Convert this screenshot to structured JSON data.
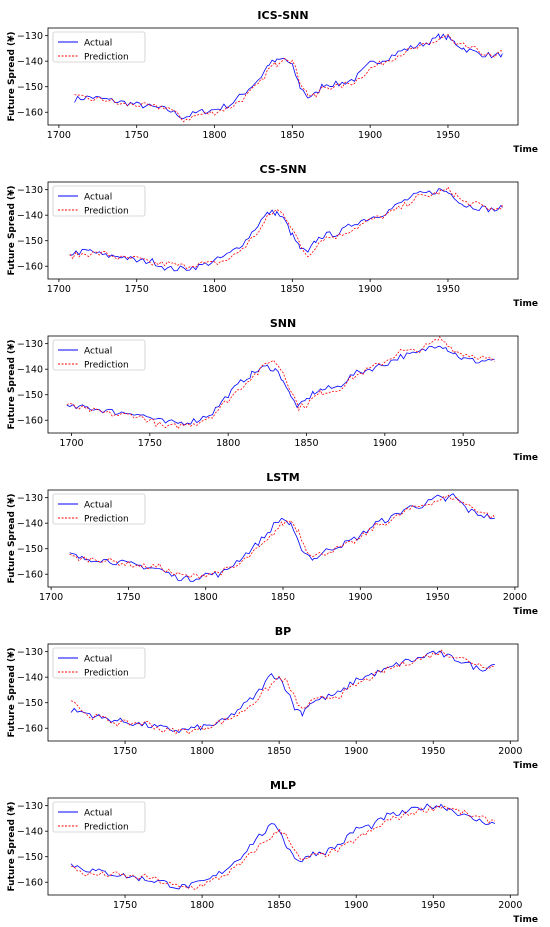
{
  "figure": {
    "ylabel": "Future Spread (¥)",
    "xlabel": "Time"
  },
  "legend": {
    "actual_color": "#0000ff",
    "prediction_color": "#ff0000"
  },
  "chart_data": [
    {
      "type": "line",
      "title": "ICS-SNN",
      "xlabel": "Time",
      "ylabel": "Future Spread (¥)",
      "xlim": [
        1693,
        1995
      ],
      "ylim": [
        -165,
        -127
      ],
      "xticks": [
        1700,
        1750,
        1800,
        1850,
        1900,
        1950
      ],
      "yticks": [
        -130,
        -140,
        -150,
        -160
      ],
      "legend": "top-left",
      "grid": false,
      "series": [
        {
          "name": "Actual",
          "x": [
            1710,
            1720,
            1730,
            1740,
            1750,
            1760,
            1770,
            1780,
            1790,
            1800,
            1810,
            1820,
            1830,
            1835,
            1840,
            1845,
            1850,
            1855,
            1860,
            1865,
            1870,
            1880,
            1890,
            1900,
            1910,
            1920,
            1930,
            1940,
            1945,
            1950,
            1955,
            1960,
            1970,
            1980,
            1985
          ],
          "y": [
            -155,
            -154,
            -155,
            -156,
            -157,
            -158,
            -159,
            -162,
            -160,
            -159,
            -157,
            -152,
            -146,
            -141,
            -140,
            -139,
            -142,
            -150,
            -154,
            -153,
            -149,
            -149,
            -147,
            -141,
            -139,
            -136,
            -134,
            -132,
            -130,
            -131,
            -133,
            -135,
            -137,
            -138,
            -137
          ]
        },
        {
          "name": "Prediction",
          "x": [
            1710,
            1720,
            1730,
            1740,
            1750,
            1760,
            1770,
            1780,
            1790,
            1800,
            1810,
            1820,
            1830,
            1835,
            1840,
            1845,
            1850,
            1855,
            1860,
            1865,
            1870,
            1880,
            1890,
            1900,
            1910,
            1920,
            1930,
            1940,
            1945,
            1950,
            1955,
            1960,
            1970,
            1980,
            1985
          ],
          "y": [
            -154,
            -155,
            -155,
            -157,
            -157,
            -158,
            -158,
            -163,
            -161,
            -160,
            -158,
            -154,
            -148,
            -143,
            -141,
            -138,
            -140,
            -148,
            -153,
            -154,
            -150,
            -150,
            -148,
            -143,
            -140,
            -137,
            -135,
            -133,
            -131,
            -130,
            -134,
            -134,
            -136,
            -139,
            -136
          ]
        }
      ]
    },
    {
      "type": "line",
      "title": "CS-SNN",
      "xlabel": "Time",
      "ylabel": "Future Spread (¥)",
      "xlim": [
        1693,
        1995
      ],
      "ylim": [
        -165,
        -127
      ],
      "xticks": [
        1700,
        1750,
        1800,
        1850,
        1900,
        1950
      ],
      "yticks": [
        -130,
        -140,
        -150,
        -160
      ],
      "legend": "top-left",
      "grid": false,
      "series": [
        {
          "name": "Actual",
          "x": [
            1707,
            1720,
            1730,
            1740,
            1750,
            1760,
            1770,
            1780,
            1790,
            1800,
            1810,
            1820,
            1830,
            1835,
            1840,
            1845,
            1850,
            1855,
            1860,
            1865,
            1870,
            1880,
            1890,
            1900,
            1910,
            1920,
            1930,
            1940,
            1945,
            1950,
            1955,
            1960,
            1970,
            1980,
            1985
          ],
          "y": [
            -155,
            -154,
            -156,
            -156,
            -158,
            -158,
            -161,
            -161,
            -160,
            -158,
            -155,
            -150,
            -142,
            -139,
            -139,
            -142,
            -148,
            -153,
            -155,
            -150,
            -148,
            -147,
            -143,
            -141,
            -139,
            -135,
            -132,
            -131,
            -130,
            -131,
            -133,
            -136,
            -137,
            -138,
            -137
          ]
        },
        {
          "name": "Prediction",
          "x": [
            1707,
            1720,
            1730,
            1740,
            1750,
            1760,
            1770,
            1780,
            1790,
            1800,
            1810,
            1820,
            1830,
            1835,
            1840,
            1845,
            1850,
            1855,
            1860,
            1865,
            1870,
            1880,
            1890,
            1900,
            1910,
            1920,
            1930,
            1940,
            1945,
            1950,
            1955,
            1960,
            1970,
            1980,
            1985
          ],
          "y": [
            -156,
            -155,
            -155,
            -157,
            -157,
            -159,
            -159,
            -160,
            -159,
            -159,
            -157,
            -152,
            -145,
            -140,
            -138,
            -140,
            -145,
            -152,
            -156,
            -152,
            -149,
            -148,
            -145,
            -142,
            -140,
            -137,
            -133,
            -132,
            -131,
            -130,
            -132,
            -135,
            -136,
            -138,
            -136
          ]
        }
      ]
    },
    {
      "type": "line",
      "title": "SNN",
      "xlabel": "Time",
      "ylabel": "Future Spread (¥)",
      "xlim": [
        1685,
        1985
      ],
      "ylim": [
        -165,
        -127
      ],
      "xticks": [
        1700,
        1750,
        1800,
        1850,
        1900,
        1950
      ],
      "yticks": [
        -130,
        -140,
        -150,
        -160
      ],
      "legend": "top-left",
      "grid": false,
      "series": [
        {
          "name": "Actual",
          "x": [
            1697,
            1710,
            1720,
            1730,
            1740,
            1750,
            1760,
            1770,
            1780,
            1790,
            1800,
            1810,
            1815,
            1820,
            1825,
            1830,
            1835,
            1840,
            1845,
            1850,
            1855,
            1860,
            1870,
            1880,
            1890,
            1900,
            1910,
            1920,
            1930,
            1935,
            1940,
            1945,
            1950,
            1960,
            1970
          ],
          "y": [
            -155,
            -155,
            -156,
            -157,
            -157,
            -159,
            -161,
            -161,
            -160,
            -157,
            -150,
            -144,
            -142,
            -140,
            -139,
            -140,
            -144,
            -151,
            -155,
            -152,
            -149,
            -148,
            -147,
            -142,
            -140,
            -138,
            -135,
            -134,
            -131,
            -130,
            -132,
            -134,
            -136,
            -137,
            -136
          ]
        },
        {
          "name": "Prediction",
          "x": [
            1697,
            1710,
            1720,
            1730,
            1740,
            1750,
            1760,
            1770,
            1780,
            1790,
            1800,
            1810,
            1815,
            1820,
            1825,
            1830,
            1835,
            1840,
            1845,
            1850,
            1855,
            1860,
            1870,
            1880,
            1890,
            1900,
            1910,
            1920,
            1930,
            1935,
            1940,
            1945,
            1950,
            1960,
            1970
          ],
          "y": [
            -154,
            -156,
            -157,
            -158,
            -158,
            -160,
            -163,
            -162,
            -161,
            -158,
            -152,
            -146,
            -143,
            -141,
            -137,
            -137,
            -141,
            -148,
            -155,
            -154,
            -151,
            -149,
            -148,
            -143,
            -140,
            -137,
            -133,
            -133,
            -130,
            -128,
            -130,
            -133,
            -134,
            -135,
            -137
          ]
        }
      ]
    },
    {
      "type": "line",
      "title": "LSTM",
      "xlabel": "Time",
      "ylabel": "Future Spread (¥)",
      "xlim": [
        1698,
        2002
      ],
      "ylim": [
        -165,
        -127
      ],
      "xticks": [
        1700,
        1750,
        1800,
        1850,
        1900,
        1950,
        2000
      ],
      "yticks": [
        -130,
        -140,
        -150,
        -160
      ],
      "legend": "top-left",
      "grid": false,
      "series": [
        {
          "name": "Actual",
          "x": [
            1712,
            1720,
            1730,
            1740,
            1750,
            1760,
            1770,
            1780,
            1790,
            1800,
            1810,
            1820,
            1830,
            1840,
            1845,
            1850,
            1855,
            1860,
            1865,
            1870,
            1880,
            1890,
            1900,
            1910,
            1920,
            1930,
            1940,
            1950,
            1955,
            1960,
            1970,
            1980,
            1987
          ],
          "y": [
            -152,
            -154,
            -154,
            -155,
            -156,
            -157,
            -158,
            -161,
            -162,
            -160,
            -160,
            -155,
            -150,
            -144,
            -140,
            -138,
            -141,
            -148,
            -152,
            -154,
            -150,
            -148,
            -145,
            -140,
            -138,
            -134,
            -133,
            -130,
            -131,
            -129,
            -135,
            -137,
            -138
          ]
        },
        {
          "name": "Prediction",
          "x": [
            1712,
            1720,
            1730,
            1740,
            1750,
            1760,
            1770,
            1780,
            1790,
            1800,
            1810,
            1820,
            1830,
            1840,
            1845,
            1850,
            1855,
            1860,
            1865,
            1870,
            1880,
            1890,
            1900,
            1910,
            1920,
            1930,
            1940,
            1950,
            1955,
            1960,
            1970,
            1980,
            1987
          ],
          "y": [
            -153,
            -154,
            -154,
            -155,
            -156,
            -157,
            -157,
            -160,
            -161,
            -160,
            -159,
            -157,
            -152,
            -147,
            -143,
            -140,
            -139,
            -143,
            -150,
            -153,
            -151,
            -149,
            -146,
            -141,
            -139,
            -135,
            -133,
            -131,
            -130,
            -130,
            -133,
            -136,
            -138
          ]
        }
      ]
    },
    {
      "type": "line",
      "title": "BP",
      "xlabel": "Time",
      "ylabel": "Future Spread (¥)",
      "xlim": [
        1700,
        2005
      ],
      "ylim": [
        -165,
        -127
      ],
      "xticks": [
        1750,
        1800,
        1850,
        1900,
        1950,
        2000
      ],
      "yticks": [
        -130,
        -140,
        -150,
        -160
      ],
      "legend": "top-left",
      "grid": false,
      "series": [
        {
          "name": "Actual",
          "x": [
            1715,
            1725,
            1735,
            1745,
            1755,
            1765,
            1775,
            1785,
            1795,
            1805,
            1815,
            1825,
            1835,
            1845,
            1850,
            1855,
            1860,
            1865,
            1870,
            1880,
            1890,
            1900,
            1910,
            1920,
            1930,
            1940,
            1950,
            1955,
            1960,
            1970,
            1980,
            1990
          ],
          "y": [
            -153,
            -154,
            -156,
            -157,
            -158,
            -159,
            -160,
            -161,
            -160,
            -159,
            -157,
            -152,
            -147,
            -139,
            -140,
            -145,
            -152,
            -154,
            -150,
            -148,
            -146,
            -141,
            -139,
            -137,
            -134,
            -133,
            -130,
            -131,
            -132,
            -134,
            -137,
            -135
          ]
        },
        {
          "name": "Prediction",
          "x": [
            1715,
            1725,
            1735,
            1745,
            1755,
            1765,
            1775,
            1785,
            1795,
            1805,
            1815,
            1825,
            1835,
            1845,
            1850,
            1855,
            1860,
            1865,
            1870,
            1880,
            1890,
            1900,
            1910,
            1920,
            1930,
            1940,
            1950,
            1955,
            1960,
            1970,
            1980,
            1990
          ],
          "y": [
            -148,
            -155,
            -156,
            -158,
            -158,
            -158,
            -161,
            -161,
            -161,
            -159,
            -157,
            -154,
            -149,
            -143,
            -140,
            -142,
            -148,
            -153,
            -150,
            -148,
            -147,
            -143,
            -140,
            -137,
            -135,
            -133,
            -131,
            -130,
            -131,
            -133,
            -135,
            -136
          ]
        }
      ]
    },
    {
      "type": "line",
      "title": "MLP",
      "xlabel": "Time",
      "ylabel": "Future Spread (¥)",
      "xlim": [
        1700,
        2005
      ],
      "ylim": [
        -165,
        -127
      ],
      "xticks": [
        1750,
        1800,
        1850,
        1900,
        1950,
        2000
      ],
      "yticks": [
        -130,
        -140,
        -150,
        -160
      ],
      "legend": "top-left",
      "grid": false,
      "series": [
        {
          "name": "Actual",
          "x": [
            1715,
            1725,
            1735,
            1745,
            1755,
            1765,
            1775,
            1785,
            1795,
            1805,
            1815,
            1825,
            1835,
            1845,
            1850,
            1855,
            1860,
            1865,
            1870,
            1880,
            1890,
            1900,
            1910,
            1920,
            1930,
            1940,
            1950,
            1955,
            1960,
            1970,
            1980,
            1990
          ],
          "y": [
            -153,
            -155,
            -156,
            -157,
            -158,
            -159,
            -160,
            -162,
            -161,
            -159,
            -155,
            -150,
            -143,
            -138,
            -139,
            -146,
            -150,
            -152,
            -149,
            -148,
            -145,
            -139,
            -138,
            -134,
            -133,
            -131,
            -130,
            -130,
            -131,
            -134,
            -136,
            -137
          ]
        },
        {
          "name": "Prediction",
          "x": [
            1715,
            1725,
            1735,
            1745,
            1755,
            1765,
            1775,
            1785,
            1795,
            1805,
            1815,
            1825,
            1835,
            1845,
            1850,
            1855,
            1860,
            1865,
            1870,
            1880,
            1890,
            1900,
            1910,
            1920,
            1930,
            1940,
            1950,
            1955,
            1960,
            1970,
            1980,
            1990
          ],
          "y": [
            -154,
            -157,
            -157,
            -157,
            -158,
            -158,
            -160,
            -162,
            -162,
            -160,
            -157,
            -153,
            -147,
            -142,
            -140,
            -141,
            -148,
            -152,
            -150,
            -149,
            -147,
            -143,
            -140,
            -136,
            -134,
            -132,
            -131,
            -130,
            -131,
            -133,
            -135,
            -136
          ]
        }
      ]
    }
  ]
}
